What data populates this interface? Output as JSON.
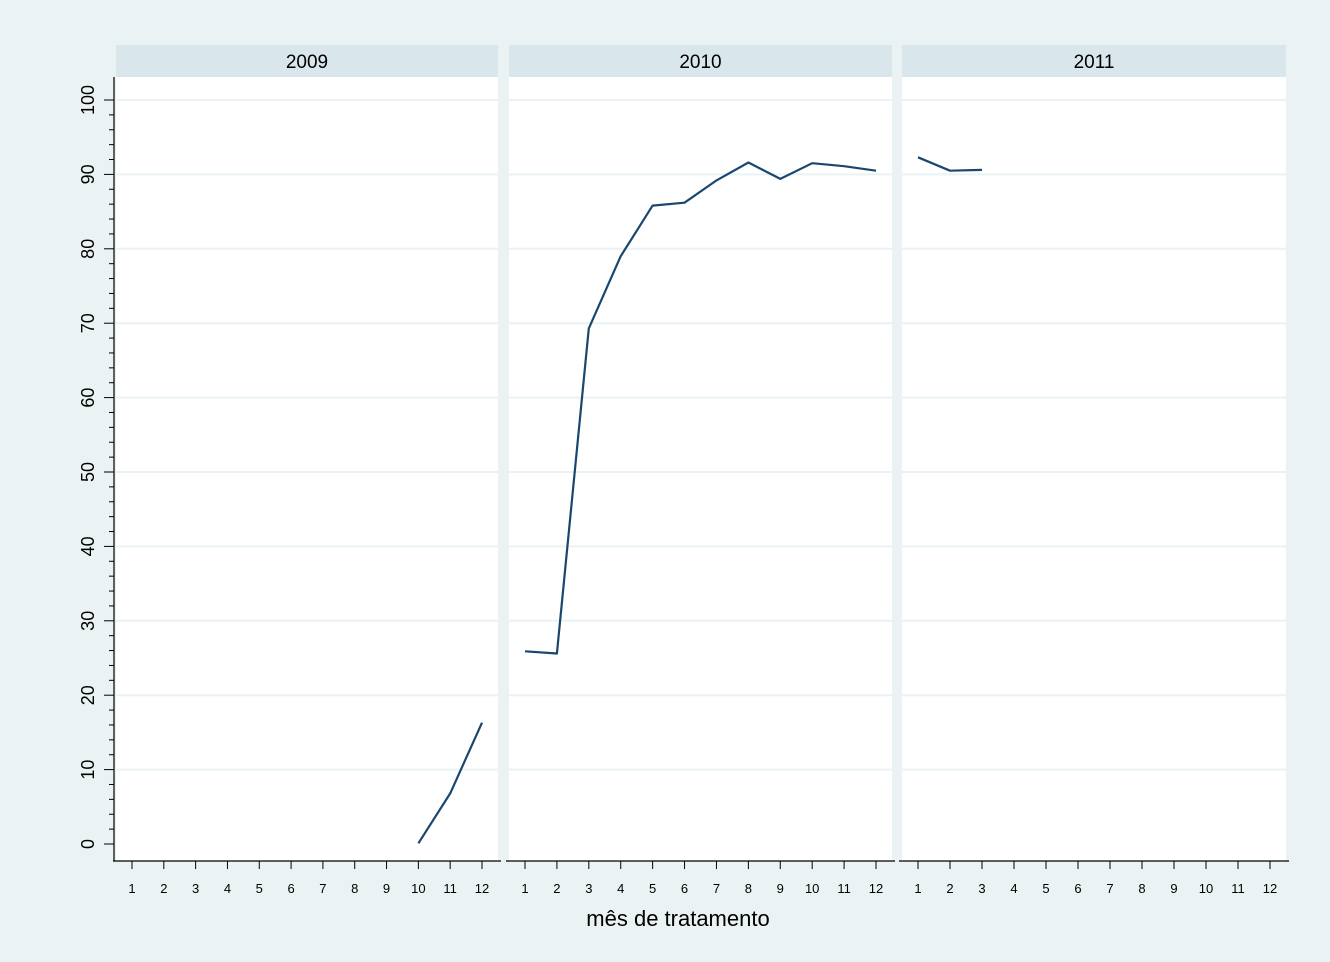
{
  "chart_data": {
    "type": "line",
    "xlabel": "mês de tratamento",
    "ylabel": "",
    "ylim": [
      0,
      100
    ],
    "yticks": [
      0,
      10,
      20,
      30,
      40,
      50,
      60,
      70,
      80,
      90,
      100
    ],
    "xticks": [
      1,
      2,
      3,
      4,
      5,
      6,
      7,
      8,
      9,
      10,
      11,
      12
    ],
    "grid": true,
    "panels": [
      {
        "title": "2009",
        "x": [
          10,
          11,
          12
        ],
        "y": [
          0.1,
          6.8,
          16.3
        ]
      },
      {
        "title": "2010",
        "x": [
          1,
          2,
          3,
          4,
          5,
          6,
          7,
          8,
          9,
          10,
          11,
          12
        ],
        "y": [
          25.9,
          25.6,
          69.3,
          79.0,
          85.8,
          86.2,
          89.2,
          91.6,
          89.4,
          91.5,
          91.1,
          90.5
        ]
      },
      {
        "title": "2011",
        "x": [
          1,
          2,
          3
        ],
        "y": [
          92.3,
          90.5,
          90.6
        ]
      }
    ]
  },
  "colors": {
    "background": "#eaf2f3",
    "plot_area": "#ffffff",
    "header": "#d9e6eb",
    "grid": "#eaf2f3",
    "line": "#1a476f"
  }
}
